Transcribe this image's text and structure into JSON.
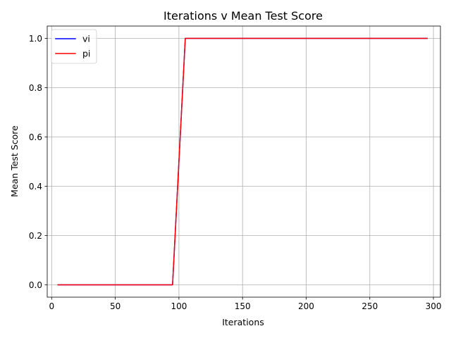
{
  "chart_data": {
    "type": "line",
    "title": "Iterations v Mean Test Score",
    "xlabel": "Iterations",
    "ylabel": "Mean Test Score",
    "xlim": [
      -3.5,
      305.5
    ],
    "ylim": [
      -0.05,
      1.05
    ],
    "grid": true,
    "legend_position": "top-left",
    "x_ticks": [
      0,
      50,
      100,
      150,
      200,
      250,
      300
    ],
    "x_tick_labels": [
      "0",
      "50",
      "100",
      "150",
      "200",
      "250",
      "300"
    ],
    "y_ticks": [
      0.0,
      0.2,
      0.4,
      0.6,
      0.8,
      1.0
    ],
    "y_tick_labels": [
      "0.0",
      "0.2",
      "0.4",
      "0.6",
      "0.8",
      "1.0"
    ],
    "x": [
      5,
      15,
      25,
      35,
      45,
      55,
      65,
      75,
      85,
      95,
      105,
      115,
      125,
      135,
      145,
      155,
      165,
      175,
      185,
      195,
      205,
      215,
      225,
      235,
      245,
      255,
      265,
      275,
      285,
      295
    ],
    "series": [
      {
        "name": "vi",
        "color": "#0000ff",
        "values": [
          0,
          0,
          0,
          0,
          0,
          0,
          0,
          0,
          0,
          0,
          1,
          1,
          1,
          1,
          1,
          1,
          1,
          1,
          1,
          1,
          1,
          1,
          1,
          1,
          1,
          1,
          1,
          1,
          1,
          1
        ]
      },
      {
        "name": "pi",
        "color": "#ff0000",
        "values": [
          0,
          0,
          0,
          0,
          0,
          0,
          0,
          0,
          0,
          0,
          1,
          1,
          1,
          1,
          1,
          1,
          1,
          1,
          1,
          1,
          1,
          1,
          1,
          1,
          1,
          1,
          1,
          1,
          1,
          1
        ]
      }
    ]
  }
}
